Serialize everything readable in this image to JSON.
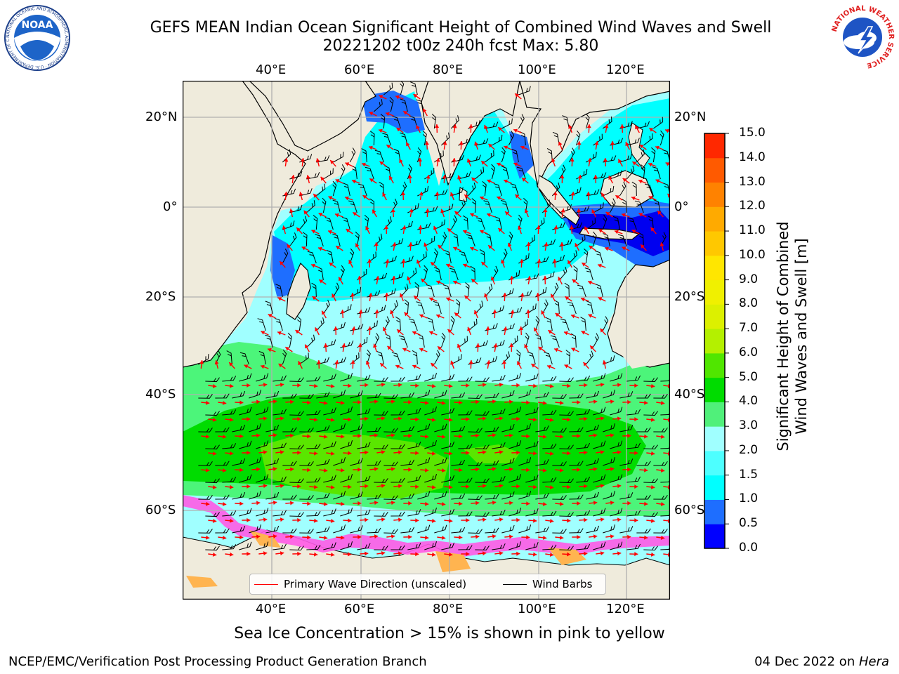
{
  "header": {
    "title_line1": "GEFS MEAN Indian Ocean Significant Height of Combined Wind Waves and Swell",
    "title_line2": "20221202 t00z 240h fcst   Max: 5.80",
    "noaa_logo_text": "NOAA",
    "noaa_ring_text": "NATIONAL OCEANIC AND ATMOSPHERIC ADMINISTRATION · U.S. DEPARTMENT OF COMMERCE",
    "nws_ring_text": "NATIONAL WEATHER SERVICE"
  },
  "map": {
    "lon_labels": [
      "40°E",
      "60°E",
      "80°E",
      "100°E",
      "120°E"
    ],
    "lat_labels": [
      "20°N",
      "0°",
      "20°S",
      "40°S",
      "60°S"
    ],
    "land_color": "#efebdc",
    "ocean_colors": {
      "dark_blue": "#1565e8",
      "blue": "#0000f5",
      "cyan": "#00ffff",
      "light_cyan": "#a0ffff",
      "green_light": "#4cf57a",
      "green": "#00dc00",
      "green_yellow": "#5ae600",
      "ice_pink": "#ff5ae6",
      "ice_orange": "#ffb450"
    }
  },
  "legend": {
    "primary_wave": "Primary Wave Direction (unscaled)",
    "wind_barbs": "Wind Barbs",
    "primary_wave_color": "#ff0000",
    "wind_barbs_color": "#000000"
  },
  "colorbar": {
    "label_line1": "Significant Height of Combined",
    "label_line2": "Wind Waves and Swell [m]",
    "ticks": [
      "15.0",
      "14.0",
      "13.0",
      "12.0",
      "11.0",
      "10.0",
      "9.0",
      "8.0",
      "7.0",
      "6.0",
      "5.0",
      "4.0",
      "3.0",
      "2.0",
      "1.5",
      "1.0",
      "0.5",
      "0.0"
    ],
    "colors": [
      "#0000ff",
      "#1e6eff",
      "#00ffff",
      "#4dffff",
      "#a0ffff",
      "#50f07a",
      "#00dc00",
      "#50e600",
      "#b4f000",
      "#dcf000",
      "#f0f000",
      "#ffe600",
      "#ffc800",
      "#ffaa00",
      "#ff8200",
      "#ff5a00",
      "#ff2800"
    ]
  },
  "bottom_note": "Sea Ice Concentration > 15% is shown in pink to yellow",
  "footer": {
    "left": "NCEP/EMC/Verification Post Processing Product Generation Branch",
    "right_prefix": "04 Dec 2022 on ",
    "right_host": "Hera"
  }
}
